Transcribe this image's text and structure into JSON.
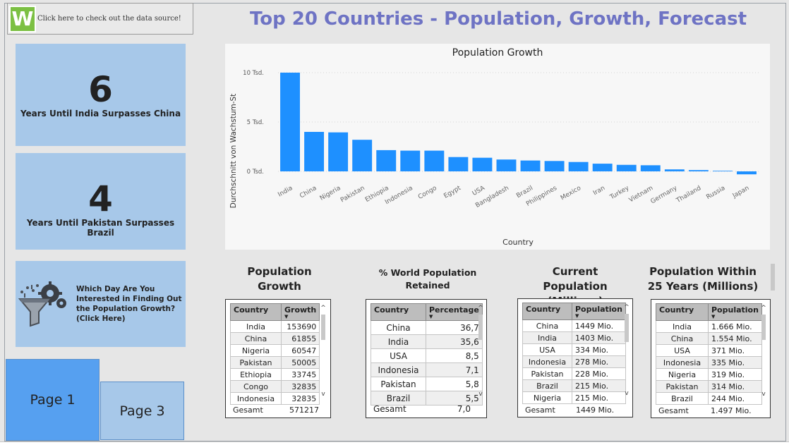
{
  "source_link": {
    "logo_letter": "W",
    "label": "Click here to check out the data source!"
  },
  "title": "Top 20 Countries - Population, Growth, Forecast",
  "kpis": [
    {
      "value": "6",
      "caption": "Years Until India Surpasses China"
    },
    {
      "value": "4",
      "caption": "Years Until Pakistan Surpasses Brazil"
    }
  ],
  "finder": {
    "icon": "funnel-gears-icon",
    "text": "Which Day Are You Interested in Finding Out the Population Growth? (Click Here)"
  },
  "pages": {
    "page1": "Page 1",
    "page3": "Page 3"
  },
  "colors": {
    "accent": "#6e73c4",
    "bar": "#1e90ff",
    "tile": "#a7c8e9",
    "active_page": "#56a0f0"
  },
  "chart_data": {
    "type": "bar",
    "title": "Population Growth",
    "xlabel": "Country",
    "ylabel": "Durchschnitt von Wachstum-St",
    "categories": [
      "India",
      "China",
      "Nigeria",
      "Pakistan",
      "Ethiopia",
      "Indonesia",
      "Congo",
      "Egypt",
      "USA",
      "Bangladesh",
      "Brazil",
      "Philippines",
      "Mexico",
      "Iran",
      "Turkey",
      "Vietnam",
      "Germany",
      "Thailand",
      "Russia",
      "Japan"
    ],
    "values": [
      10000,
      4000,
      3950,
      3200,
      2150,
      2100,
      2100,
      1450,
      1380,
      1200,
      1100,
      1050,
      950,
      780,
      660,
      620,
      200,
      130,
      60,
      -300
    ],
    "ylim": [
      -500,
      10500
    ],
    "yticks": [
      0,
      5000,
      10000
    ],
    "ytick_labels": [
      "0 Tsd.",
      "5 Tsd.",
      "10 Tsd."
    ],
    "grid": true,
    "legend": "none"
  },
  "tables": {
    "growth": {
      "title": "Population Growth",
      "headers": [
        "Country",
        "Growth"
      ],
      "rows": [
        [
          "India",
          "153690"
        ],
        [
          "China",
          "61855"
        ],
        [
          "Nigeria",
          "60547"
        ],
        [
          "Pakistan",
          "50005"
        ],
        [
          "Ethiopia",
          "33745"
        ],
        [
          "Congo",
          "32835"
        ],
        [
          "Indonesia",
          "32835"
        ]
      ],
      "total_label": "Gesamt",
      "total_value": "571217"
    },
    "retained": {
      "title": "% World Population Retained",
      "headers": [
        "Country",
        "Percentage"
      ],
      "rows": [
        [
          "China",
          "36,7"
        ],
        [
          "India",
          "35,6"
        ],
        [
          "USA",
          "8,5"
        ],
        [
          "Indonesia",
          "7,1"
        ],
        [
          "Pakistan",
          "5,8"
        ],
        [
          "Brazil",
          "5,5"
        ]
      ],
      "total_label": "Gesamt",
      "total_value": "7,0"
    },
    "current": {
      "title": "Current Population (Millions)",
      "headers": [
        "Country",
        "Population"
      ],
      "rows": [
        [
          "China",
          "1449 Mio."
        ],
        [
          "India",
          "1403 Mio."
        ],
        [
          "USA",
          "334 Mio."
        ],
        [
          "Indonesia",
          "278 Mio."
        ],
        [
          "Pakistan",
          "228 Mio."
        ],
        [
          "Brazil",
          "215 Mio."
        ],
        [
          "Nigeria",
          "215 Mio."
        ]
      ],
      "total_label": "Gesamt",
      "total_value": "1449 Mio."
    },
    "forecast": {
      "title": "Population Within 25 Years (Millions)",
      "headers": [
        "Country",
        "Population"
      ],
      "rows": [
        [
          "India",
          "1.666 Mio."
        ],
        [
          "China",
          "1.554 Mio."
        ],
        [
          "USA",
          "371 Mio."
        ],
        [
          "Indonesia",
          "335 Mio."
        ],
        [
          "Nigeria",
          "319 Mio."
        ],
        [
          "Pakistan",
          "314 Mio."
        ],
        [
          "Brazil",
          "244 Mio."
        ]
      ],
      "total_label": "Gesamt",
      "total_value": "1.497 Mio."
    }
  }
}
